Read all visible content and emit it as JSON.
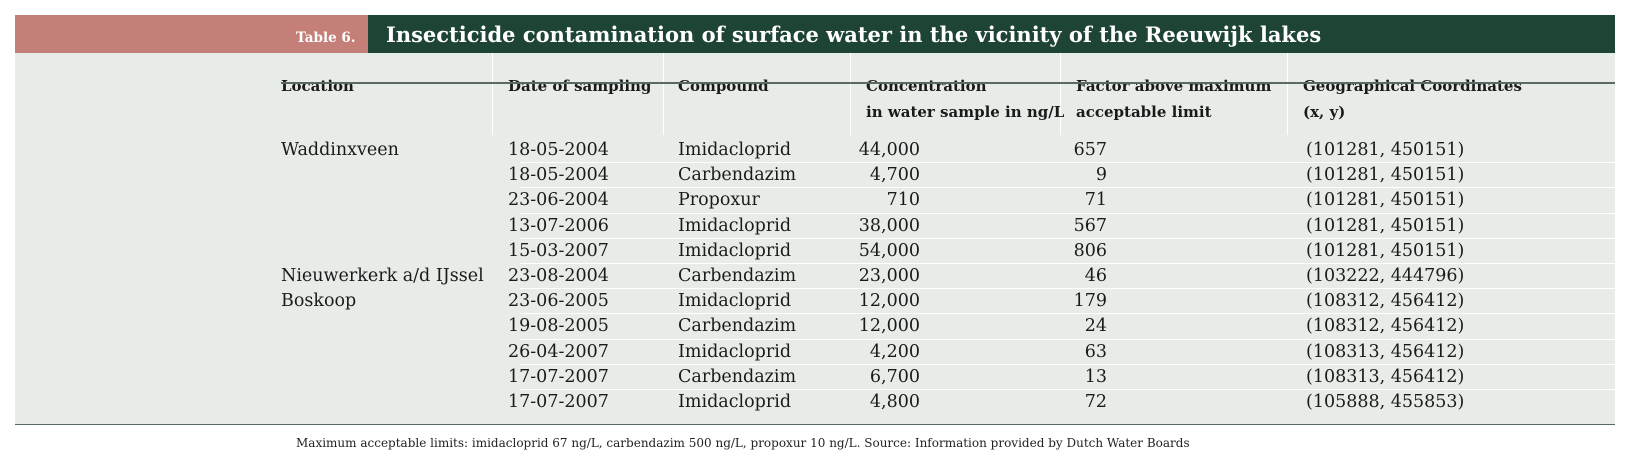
{
  "table": {
    "label": "Table 6.",
    "title": "Insecticide contamination of surface water in the vicinity of the Reeuwijk lakes",
    "headers": {
      "location": "Location",
      "date": "Date of sampling",
      "compound": "Compound",
      "concentration_line1": "Concentration",
      "concentration_line2": "in water sample in ng/L",
      "factor_line1": "Factor above maximum",
      "factor_line2": "acceptable limit",
      "coords_line1": "Geographical Coordinates",
      "coords_line2": "(x, y)"
    },
    "rows": [
      {
        "location": "Waddinxveen",
        "date": "18-05-2004",
        "compound": "Imidacloprid",
        "concentration": "44,000",
        "factor": "657",
        "coords": "(101281, 450151)"
      },
      {
        "location": "",
        "date": "18-05-2004",
        "compound": "Carbendazim",
        "concentration": "4,700",
        "factor": "9",
        "coords": "(101281, 450151)"
      },
      {
        "location": "",
        "date": "23-06-2004",
        "compound": "Propoxur",
        "concentration": "710",
        "factor": "71",
        "coords": "(101281, 450151)"
      },
      {
        "location": "",
        "date": "13-07-2006",
        "compound": "Imidacloprid",
        "concentration": "38,000",
        "factor": "567",
        "coords": "(101281, 450151)"
      },
      {
        "location": "",
        "date": "15-03-2007",
        "compound": "Imidacloprid",
        "concentration": "54,000",
        "factor": "806",
        "coords": "(101281, 450151)"
      },
      {
        "location": "Nieuwerkerk a/d IJssel",
        "date": "23-08-2004",
        "compound": "Carbendazim",
        "concentration": "23,000",
        "factor": "46",
        "coords": "(103222, 444796)"
      },
      {
        "location": "Boskoop",
        "date": "23-06-2005",
        "compound": "Imidacloprid",
        "concentration": "12,000",
        "factor": "179",
        "coords": "(108312, 456412)"
      },
      {
        "location": "",
        "date": "19-08-2005",
        "compound": "Carbendazim",
        "concentration": "12,000",
        "factor": "24",
        "coords": "(108312, 456412)"
      },
      {
        "location": "",
        "date": "26-04-2007",
        "compound": "Imidacloprid",
        "concentration": "4,200",
        "factor": "63",
        "coords": "(108313, 456412)"
      },
      {
        "location": "",
        "date": "17-07-2007",
        "compound": "Carbendazim",
        "concentration": "6,700",
        "factor": "13",
        "coords": "(108313, 456412)"
      },
      {
        "location": "",
        "date": "17-07-2007",
        "compound": "Imidacloprid",
        "concentration": "4,800",
        "factor": "72",
        "coords": "(105888, 455853)"
      }
    ],
    "footnote": "Maximum acceptable limits: imidacloprid 67 ng/L, carbendazim 500 ng/L, propoxur 10 ng/L. Source: Information provided by Dutch Water Boards"
  },
  "colors": {
    "label_background": "#c47f78",
    "title_background": "#1d4434",
    "table_background": "#e8ece8"
  }
}
